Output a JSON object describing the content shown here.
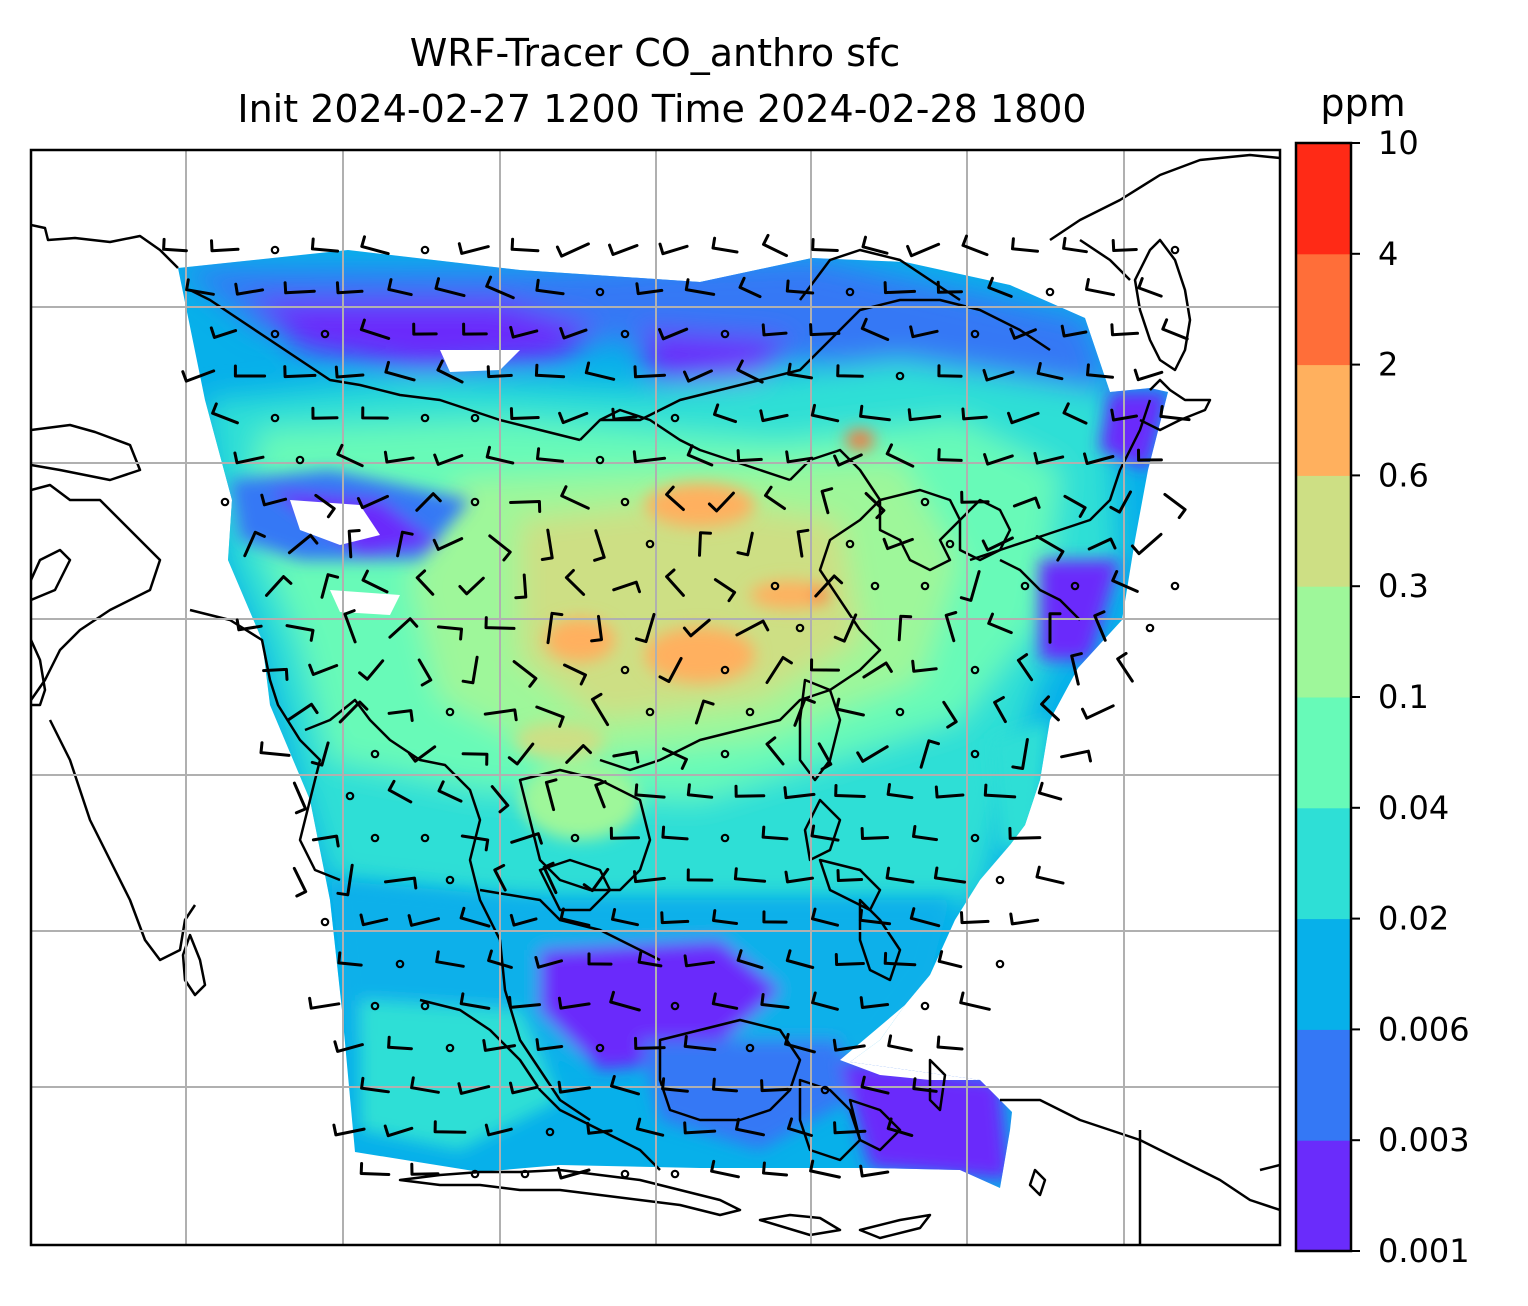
{
  "chart_data": {
    "type": "heatmap",
    "title_line1": "WRF-Tracer CO_anthro sfc",
    "title_line2": "Init 2024-02-27 1200 Time 2024-02-28 1800",
    "colorbar": {
      "unit": "ppm",
      "levels": [
        "0.001",
        "0.003",
        "0.006",
        "0.02",
        "0.04",
        "0.1",
        "0.3",
        "0.6",
        "2",
        "4",
        "10"
      ],
      "colors": [
        "#6a2cfb",
        "#3478f5",
        "#07b0ea",
        "#2edfd6",
        "#67fab8",
        "#9ef79a",
        "#cddf84",
        "#ffb05e",
        "#ff6e39",
        "#ff2a16"
      ]
    },
    "map": {
      "grid": true,
      "ocean_color": "#ffffff",
      "coastline_color": "#000000",
      "gridline_color": "#b0b0b0"
    }
  }
}
